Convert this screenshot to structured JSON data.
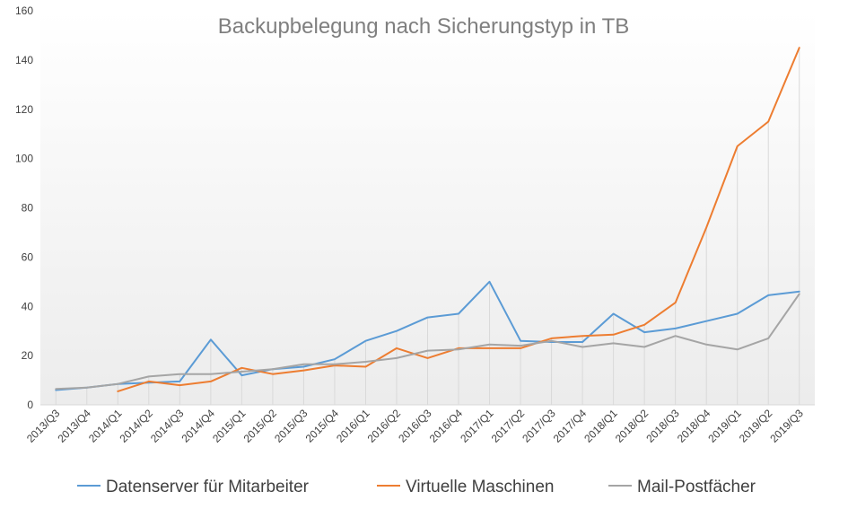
{
  "chart_data": {
    "type": "line",
    "title": "Backupbelegung nach Sicherungstyp in TB",
    "xlabel": "",
    "ylabel": "",
    "ylim": [
      0,
      160
    ],
    "yticks": [
      0,
      20,
      40,
      60,
      80,
      100,
      120,
      140,
      160
    ],
    "grid": "vertical drop lines",
    "legend": "bottom",
    "categories": [
      "2013/Q3",
      "2013/Q4",
      "2014/Q1",
      "2014/Q2",
      "2014/Q3",
      "2014/Q4",
      "2015/Q1",
      "2015/Q2",
      "2015/Q3",
      "2015/Q4",
      "2016/Q1",
      "2016/Q2",
      "2016/Q3",
      "2016/Q4",
      "2017/Q1",
      "2017/Q2",
      "2017/Q3",
      "2017/Q4",
      "2018/Q1",
      "2018/Q2",
      "2018/Q3",
      "2018/Q4",
      "2019/Q1",
      "2019/Q2",
      "2019/Q3"
    ],
    "series": [
      {
        "name": "Datenserver für Mitarbeiter",
        "color": "#5b9bd5",
        "values": [
          6,
          7,
          8.5,
          9,
          9.5,
          26.5,
          12,
          14.5,
          15.5,
          18.5,
          26,
          30,
          35.5,
          37,
          50,
          26,
          25.5,
          25.5,
          37,
          29.5,
          31,
          34,
          37,
          44.5,
          46
        ]
      },
      {
        "name": "Virtuelle Maschinen",
        "color": "#ed7d31",
        "values": [
          null,
          null,
          5.5,
          9.5,
          8,
          9.5,
          15,
          12.5,
          14,
          16,
          15.5,
          23,
          19,
          23,
          23,
          23,
          27,
          28,
          28.5,
          32.5,
          41.5,
          72,
          105,
          115,
          145
        ]
      },
      {
        "name": "Mail-Postfächer",
        "color": "#a5a5a5",
        "values": [
          6.5,
          7,
          8.5,
          11.5,
          12.5,
          12.5,
          13.5,
          14.5,
          16.5,
          16.5,
          17.5,
          19,
          22,
          22.5,
          24.5,
          24,
          26,
          23.5,
          25,
          23.5,
          28,
          24.5,
          22.5,
          27,
          45
        ]
      }
    ]
  }
}
